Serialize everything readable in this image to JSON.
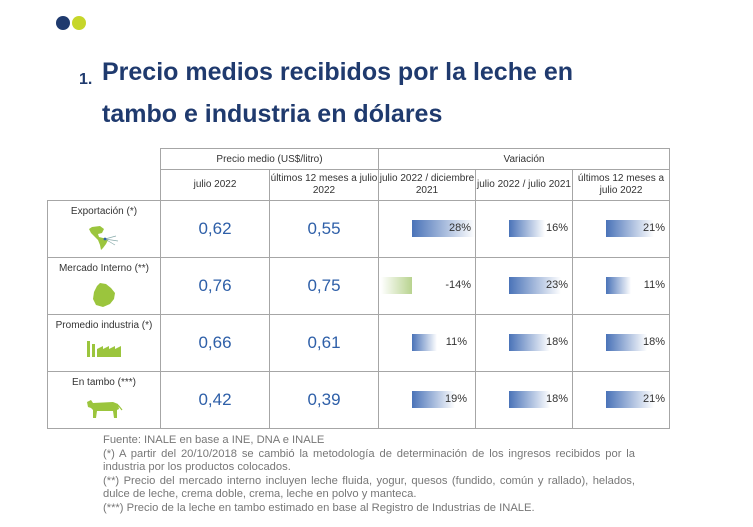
{
  "title": {
    "number": "1.",
    "line1": "Precio medios recibidos por la leche en",
    "line2": "tambo e industria en dólares"
  },
  "header": {
    "price_group": "Precio medio (US$/litro)",
    "var_group": "Variación",
    "col_price_jul": "julio 2022",
    "col_price_12m": "últimos 12 meses a julio 2022",
    "col_var_dec": "julio 2022 / diciembre 2021",
    "col_var_yoy": "julio 2022 / julio 2021",
    "col_var_12m": "últimos 12 meses a julio 2022"
  },
  "rows": [
    {
      "label": "Exportación (*)",
      "icon": "americas-map-icon",
      "price_jul": "0,62",
      "price_12m": "0,55",
      "var_dec": "28%",
      "var_yoy": "16%",
      "var_12m": "21%"
    },
    {
      "label": "Mercado Interno (**)",
      "icon": "uruguay-map-icon",
      "price_jul": "0,76",
      "price_12m": "0,75",
      "var_dec": "-14%",
      "var_yoy": "23%",
      "var_12m": "11%"
    },
    {
      "label": "Promedio industria (*)",
      "icon": "factory-icon",
      "price_jul": "0,66",
      "price_12m": "0,61",
      "var_dec": "11%",
      "var_yoy": "18%",
      "var_12m": "18%"
    },
    {
      "label": "En tambo (***)",
      "icon": "cow-icon",
      "price_jul": "0,42",
      "price_12m": "0,39",
      "var_dec": "19%",
      "var_yoy": "18%",
      "var_12m": "21%"
    }
  ],
  "notes": [
    "Fuente: INALE en base a INE, DNA e INALE",
    "(*) A partir del 20/10/2018 se cambió la metodología de determinación de los ingresos recibidos por la industria por los productos colocados.",
    "(**) Precio del mercado interno incluyen leche fluida, yogur, quesos (fundido, común y rallado), helados, dulce de leche, crema doble, crema, leche en polvo y manteca.",
    "(***) Precio de la leche en tambo estimado en base al Registro de Industrias de INALE."
  ],
  "colors": {
    "navy": "#1f3a6e",
    "lime": "#c6d62a",
    "value_blue": "#2e5fa8",
    "bar_blue": "#4a73b8",
    "bar_green": "#b8d38f"
  }
}
